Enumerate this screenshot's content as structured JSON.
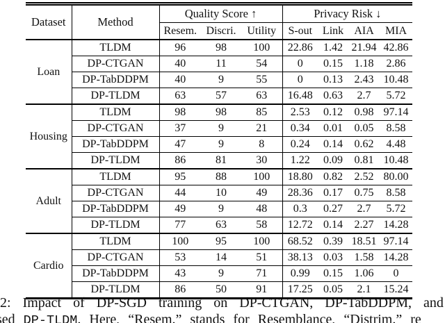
{
  "table": {
    "header": {
      "dataset": "Dataset",
      "method": "Method",
      "quality_group": "Quality Score ↑",
      "privacy_group": "Privacy Risk ↓",
      "quality_cols": [
        "Resem.",
        "Discri.",
        "Utility"
      ],
      "privacy_cols": [
        "S-out",
        "Link",
        "AIA",
        "MIA"
      ]
    },
    "blocks": [
      {
        "dataset": "Loan",
        "rows": [
          {
            "method": "TLDM",
            "resem": "96",
            "discri": "98",
            "utility": "100",
            "s_out": "22.86",
            "link": "1.42",
            "aia": "21.94",
            "mia": "42.86"
          },
          {
            "method": "DP-CTGAN",
            "resem": "40",
            "discri": "11",
            "utility": "54",
            "s_out": "0",
            "link": "0.15",
            "aia": "1.18",
            "mia": "2.86"
          },
          {
            "method": "DP-TabDDPM",
            "resem": "40",
            "discri": "9",
            "utility": "55",
            "s_out": "0",
            "link": "0.13",
            "aia": "2.43",
            "mia": "10.48"
          },
          {
            "method": "DP-TLDM",
            "resem": "63",
            "discri": "57",
            "utility": "63",
            "s_out": "16.48",
            "link": "0.63",
            "aia": "2.7",
            "mia": "5.72"
          }
        ]
      },
      {
        "dataset": "Housing",
        "rows": [
          {
            "method": "TLDM",
            "resem": "98",
            "discri": "98",
            "utility": "85",
            "s_out": "2.53",
            "link": "0.12",
            "aia": "0.98",
            "mia": "97.14"
          },
          {
            "method": "DP-CTGAN",
            "resem": "37",
            "discri": "9",
            "utility": "21",
            "s_out": "0.34",
            "link": "0.01",
            "aia": "0.05",
            "mia": "8.58"
          },
          {
            "method": "DP-TabDDPM",
            "resem": "47",
            "discri": "9",
            "utility": "8",
            "s_out": "0.24",
            "link": "0.14",
            "aia": "0.62",
            "mia": "4.48"
          },
          {
            "method": "DP-TLDM",
            "resem": "86",
            "discri": "81",
            "utility": "30",
            "s_out": "1.22",
            "link": "0.09",
            "aia": "0.81",
            "mia": "10.48"
          }
        ]
      },
      {
        "dataset": "Adult",
        "rows": [
          {
            "method": "TLDM",
            "resem": "95",
            "discri": "88",
            "utility": "100",
            "s_out": "18.80",
            "link": "0.82",
            "aia": "2.52",
            "mia": "80.00"
          },
          {
            "method": "DP-CTGAN",
            "resem": "44",
            "discri": "10",
            "utility": "49",
            "s_out": "28.36",
            "link": "0.17",
            "aia": "0.75",
            "mia": "8.58"
          },
          {
            "method": "DP-TabDDPM",
            "resem": "49",
            "discri": "9",
            "utility": "48",
            "s_out": "0.3",
            "link": "0.27",
            "aia": "2.7",
            "mia": "5.72"
          },
          {
            "method": "DP-TLDM",
            "resem": "77",
            "discri": "63",
            "utility": "58",
            "s_out": "12.72",
            "link": "0.14",
            "aia": "2.27",
            "mia": "14.28"
          }
        ]
      },
      {
        "dataset": "Cardio",
        "rows": [
          {
            "method": "TLDM",
            "resem": "100",
            "discri": "95",
            "utility": "100",
            "s_out": "68.52",
            "link": "0.39",
            "aia": "18.51",
            "mia": "97.14"
          },
          {
            "method": "DP-CTGAN",
            "resem": "53",
            "discri": "14",
            "utility": "51",
            "s_out": "38.13",
            "link": "0.03",
            "aia": "1.58",
            "mia": "14.28"
          },
          {
            "method": "DP-TabDDPM",
            "resem": "43",
            "discri": "9",
            "utility": "71",
            "s_out": "0.99",
            "link": "0.15",
            "aia": "1.06",
            "mia": "0"
          },
          {
            "method": "DP-TLDM",
            "resem": "86",
            "discri": "50",
            "utility": "91",
            "s_out": "17.25",
            "link": "0.05",
            "aia": "2.1",
            "mia": "15.24"
          }
        ]
      }
    ]
  },
  "caption": {
    "line1": "2: Impact of DP-SGD training on DP-CTGAN, DP-TabDDPM, and",
    "line2_pre": "sed ",
    "line2_code": "DP-TLDM",
    "line2_post": ". Here, “Resem.” stands for Resemblance, “Distrim.” re"
  }
}
